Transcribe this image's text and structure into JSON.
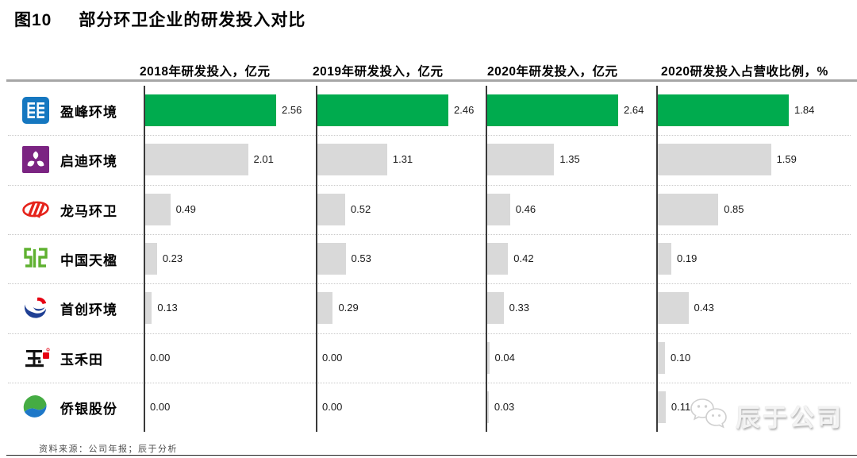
{
  "figure": {
    "label": "图10",
    "title": "部分环卫企业的研发投入对比"
  },
  "chart_data": {
    "type": "bar",
    "orientation": "horizontal",
    "layout": "small-multiples-4-columns",
    "column_headers": [
      "2018年研发投入，亿元",
      "2019年研发投入，亿元",
      "2020年研发投入，亿元",
      "2020研发投入占营收比例，%"
    ],
    "companies": [
      {
        "name": "盈峰环境",
        "logo": "yingfeng-logo",
        "highlight": true,
        "values": [
          2.56,
          2.46,
          2.64,
          1.84
        ]
      },
      {
        "name": "启迪环境",
        "logo": "qidi-logo",
        "highlight": false,
        "values": [
          2.01,
          1.31,
          1.35,
          1.59
        ]
      },
      {
        "name": "龙马环卫",
        "logo": "longma-logo",
        "highlight": false,
        "values": [
          0.49,
          0.52,
          0.46,
          0.85
        ]
      },
      {
        "name": "中国天楹",
        "logo": "tianying-logo",
        "highlight": false,
        "values": [
          0.23,
          0.53,
          0.42,
          0.19
        ]
      },
      {
        "name": "首创环境",
        "logo": "shouchuang-logo",
        "highlight": false,
        "values": [
          0.13,
          0.29,
          0.33,
          0.43
        ]
      },
      {
        "name": "玉禾田",
        "logo": "yuhetian-logo",
        "highlight": false,
        "values": [
          0.0,
          0.0,
          0.04,
          0.1
        ]
      },
      {
        "name": "侨银股份",
        "logo": "qiaoyin-logo",
        "highlight": false,
        "values": [
          0.0,
          0.0,
          0.03,
          0.11
        ]
      }
    ],
    "column_axis_max": [
      2.56,
      2.46,
      2.64,
      1.84
    ],
    "value_decimals": 2,
    "grid": "dotted-row-separators",
    "colors": {
      "highlight_bar": "#00AB4E",
      "default_bar": "#D9D9D9",
      "axis": "#3A3A3A"
    }
  },
  "footer": {
    "source": "资料来源：公司年报；辰于分析"
  },
  "watermark": {
    "text": "辰于公司",
    "icon": "wechat-icon"
  }
}
